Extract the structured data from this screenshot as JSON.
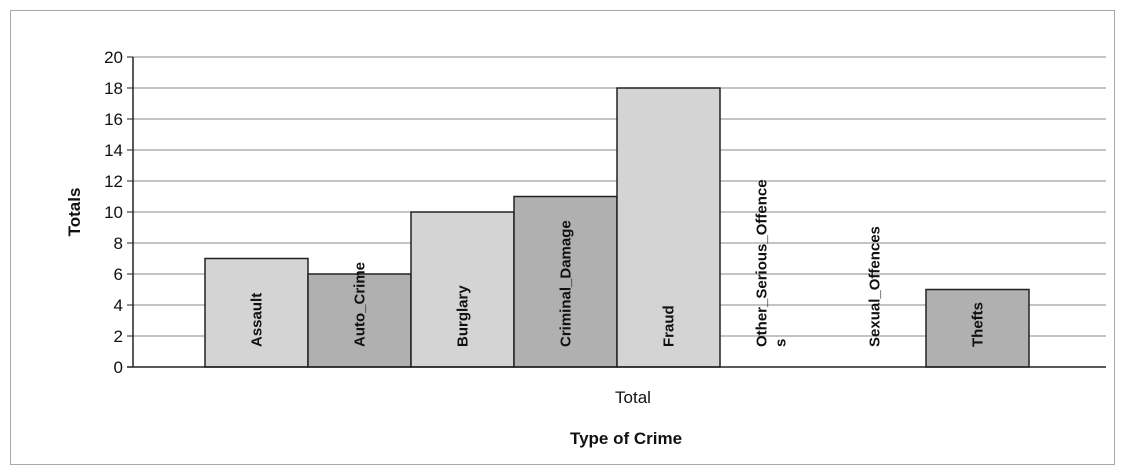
{
  "chart_data": {
    "type": "bar",
    "categories": [
      "Assault",
      "Auto_Crime",
      "Burglary",
      "Criminal_Damage",
      "Fraud",
      "Other_Serious_Offence s",
      "Sexual_Offences",
      "Thefts"
    ],
    "series": [
      {
        "name": "Total",
        "values": [
          7,
          6,
          10,
          11,
          18,
          0,
          0,
          5
        ]
      }
    ],
    "bar_colors": [
      "#d4d4d4",
      "#b0b0b0",
      "#d4d4d4",
      "#b0b0b0",
      "#d4d4d4",
      "#b0b0b0",
      "#d4d4d4",
      "#b0b0b0"
    ],
    "xlabel": "Type of Crime",
    "x_category_label": "Total",
    "ylabel": "Totals",
    "ylim": [
      0,
      20
    ],
    "ytick_step": 2,
    "grid": true,
    "legend": "none"
  }
}
